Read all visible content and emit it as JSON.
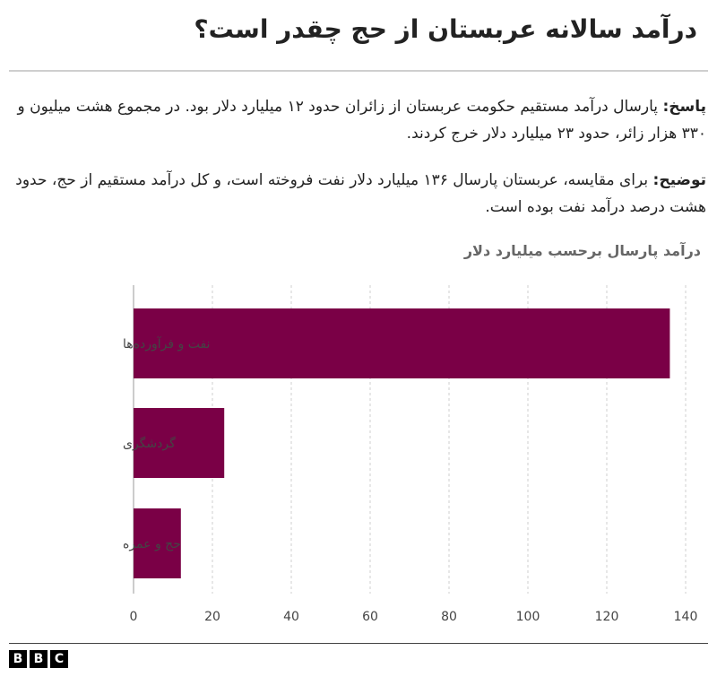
{
  "header": {
    "title": "درآمد سالانه عربستان از حج چقدر است؟"
  },
  "body": {
    "answer_label": "پاسخ:",
    "answer_text": " پارسال درآمد مستقیم حکومت عربستان از زائران حدود ۱۲ میلیارد دلار بود. در مجموع هشت میلیون و ۳۳۰ هزار زائر، حدود ۲۳ میلیارد دلار خرج کردند.",
    "explain_label": "توضیح:",
    "explain_text": " برای مقایسه، عربستان پارسال ۱۳۶ میلیارد دلار نفت فروخته است، و کل درآمد مستقیم از حج، حدود هشت درصد درآمد نفت بوده است."
  },
  "chart_data": {
    "type": "bar",
    "orientation": "horizontal",
    "title": "درآمد پارسال برحسب میلیارد دلار",
    "categories": [
      "نفت و فرآورده‌ها",
      "گردشگری",
      "حج و عمره"
    ],
    "values": [
      136,
      23,
      12
    ],
    "xlim": [
      0,
      140
    ],
    "xticks": [
      0,
      20,
      40,
      60,
      80,
      100,
      120,
      140
    ],
    "grid": "vertical dashed",
    "bar_color": "#7a0046"
  },
  "footer": {
    "brand": [
      "B",
      "B",
      "C"
    ]
  }
}
